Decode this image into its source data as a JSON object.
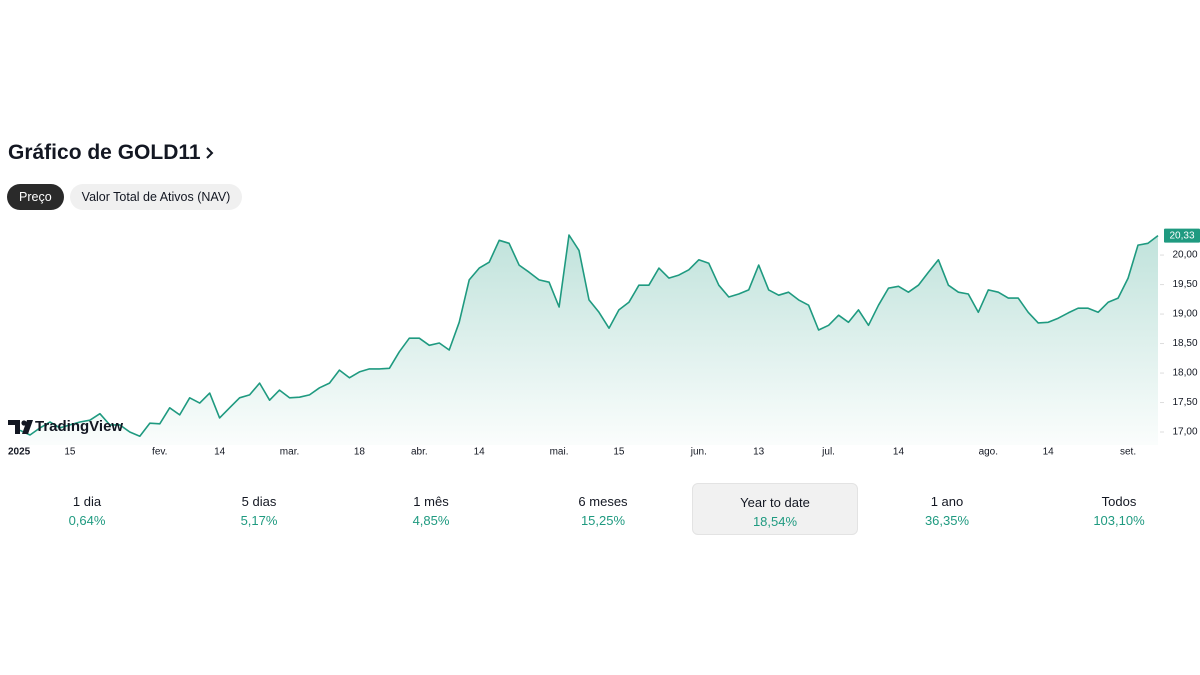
{
  "header": {
    "title": "Gráfico de GOLD11"
  },
  "tabs": [
    {
      "label": "Preço",
      "selected": true
    },
    {
      "label": "Valor Total de Ativos (NAV)",
      "selected": false
    }
  ],
  "chart_data": {
    "type": "area",
    "watermark": "TradingView",
    "color": "#1f9a80",
    "categories": [
      "2025",
      null,
      null,
      null,
      null,
      "15",
      null,
      null,
      null,
      null,
      null,
      null,
      null,
      null,
      "fev.",
      null,
      null,
      null,
      null,
      null,
      "14",
      null,
      null,
      null,
      null,
      null,
      null,
      "mar.",
      null,
      null,
      null,
      null,
      null,
      null,
      "18",
      null,
      null,
      null,
      null,
      null,
      "abr.",
      null,
      null,
      null,
      null,
      null,
      "14",
      null,
      null,
      null,
      null,
      null,
      null,
      null,
      "mai.",
      null,
      null,
      null,
      null,
      null,
      "15",
      null,
      null,
      null,
      null,
      null,
      null,
      null,
      "jun.",
      null,
      null,
      null,
      null,
      null,
      "13",
      null,
      null,
      null,
      null,
      null,
      null,
      "jul.",
      null,
      null,
      null,
      null,
      null,
      null,
      "14",
      null,
      null,
      null,
      null,
      null,
      null,
      null,
      null,
      "ago.",
      null,
      null,
      null,
      null,
      null,
      "14",
      null,
      null,
      null,
      null,
      null,
      null,
      null,
      "set.",
      null,
      null,
      null
    ],
    "values": [
      17.03,
      16.95,
      17.07,
      17.17,
      17.07,
      17.12,
      17.17,
      17.2,
      17.31,
      17.12,
      17.12,
      17.0,
      16.93,
      17.15,
      17.14,
      17.41,
      17.29,
      17.58,
      17.49,
      17.66,
      17.24,
      17.41,
      17.58,
      17.63,
      17.83,
      17.54,
      17.71,
      17.58,
      17.59,
      17.63,
      17.75,
      17.83,
      18.05,
      17.92,
      18.02,
      18.07,
      18.07,
      18.08,
      18.36,
      18.59,
      18.59,
      18.47,
      18.51,
      18.39,
      18.86,
      19.58,
      19.78,
      19.88,
      20.25,
      20.2,
      19.83,
      19.71,
      19.58,
      19.54,
      19.12,
      20.34,
      20.08,
      19.24,
      19.03,
      18.76,
      19.07,
      19.2,
      19.49,
      19.49,
      19.78,
      19.61,
      19.66,
      19.75,
      19.92,
      19.86,
      19.49,
      19.29,
      19.34,
      19.41,
      19.83,
      19.41,
      19.32,
      19.37,
      19.24,
      19.15,
      18.73,
      18.81,
      18.98,
      18.86,
      19.07,
      18.81,
      19.15,
      19.44,
      19.47,
      19.37,
      19.49,
      19.71,
      19.92,
      19.49,
      19.37,
      19.34,
      19.03,
      19.41,
      19.37,
      19.27,
      19.27,
      19.03,
      18.85,
      18.86,
      18.93,
      19.02,
      19.1,
      19.1,
      19.03,
      19.2,
      19.27,
      19.61,
      20.17,
      20.2,
      20.33
    ],
    "ylim": [
      16.78,
      20.51
    ],
    "yticks": [
      {
        "value": 17,
        "label": "17,00"
      },
      {
        "value": 17.5,
        "label": "17,50"
      },
      {
        "value": 18,
        "label": "18,00"
      },
      {
        "value": 18.5,
        "label": "18,50"
      },
      {
        "value": 19,
        "label": "19,00"
      },
      {
        "value": 19.5,
        "label": "19,50"
      },
      {
        "value": 20,
        "label": "20,00"
      }
    ],
    "last_price": {
      "value": 20.33,
      "label": "20,33"
    }
  },
  "periods": [
    {
      "label": "1 dia",
      "change": "0,64%"
    },
    {
      "label": "5 dias",
      "change": "5,17%"
    },
    {
      "label": "1 mês",
      "change": "4,85%"
    },
    {
      "label": "6 meses",
      "change": "15,25%"
    },
    {
      "label": "Year to date",
      "change": "18,54%",
      "selected": true
    },
    {
      "label": "1 ano",
      "change": "36,35%"
    },
    {
      "label": "Todos",
      "change": "103,10%"
    }
  ]
}
